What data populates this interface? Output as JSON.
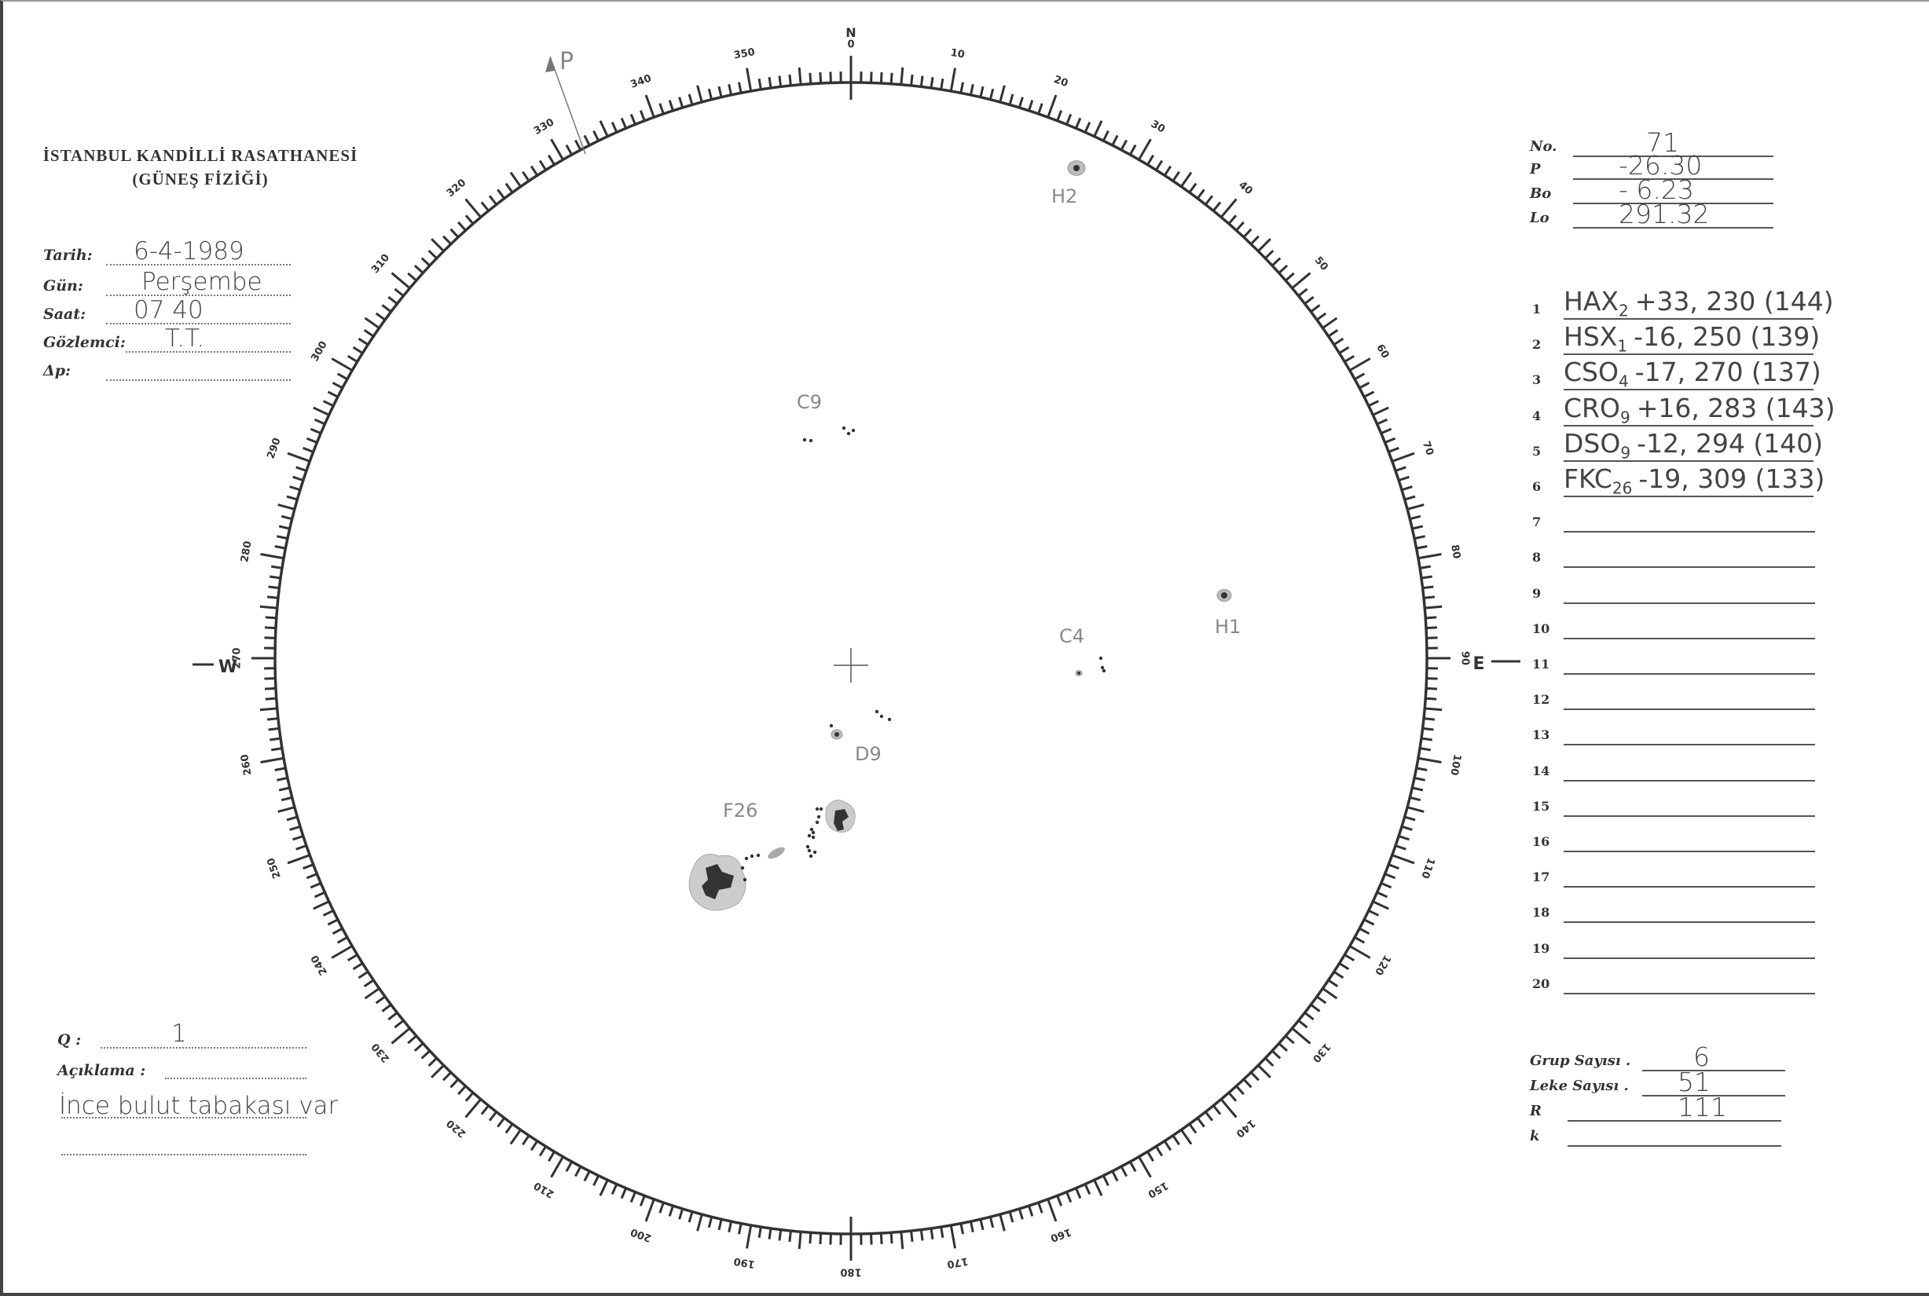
{
  "header": {
    "institution": "İSTANBUL KANDİLLİ RASATHANESİ",
    "department": "(GÜNEŞ FİZİĞİ)"
  },
  "observation": {
    "fields": [
      {
        "label": "Tarih:",
        "value": "6-4-1989"
      },
      {
        "label": "Gün:",
        "value": "Perşembe"
      },
      {
        "label": "Saat:",
        "value": "07 40"
      },
      {
        "label": "Gözlemci:",
        "value": "T.T."
      },
      {
        "label": "Δp:",
        "value": ""
      }
    ]
  },
  "parameters": [
    {
      "label": "No.",
      "value": "71"
    },
    {
      "label": "P",
      "value": "-26.30"
    },
    {
      "label": "Bo",
      "value": "- 6.23"
    },
    {
      "label": "Lo",
      "value": "291.32"
    }
  ],
  "groups": [
    {
      "n": "1",
      "cls": "HAX",
      "sub": "2",
      "rest": "+33, 230 (144)"
    },
    {
      "n": "2",
      "cls": "HSX",
      "sub": "1",
      "rest": "-16, 250 (139)"
    },
    {
      "n": "3",
      "cls": "CSO",
      "sub": "4",
      "rest": "-17, 270 (137)"
    },
    {
      "n": "4",
      "cls": "CRO",
      "sub": "9",
      "rest": "+16, 283 (143)"
    },
    {
      "n": "5",
      "cls": "DSO",
      "sub": "9",
      "rest": "-12, 294 (140)"
    },
    {
      "n": "6",
      "cls": "FKC",
      "sub": "26",
      "rest": "-19, 309 (133)"
    },
    {
      "n": "7"
    },
    {
      "n": "8"
    },
    {
      "n": "9"
    },
    {
      "n": "10"
    },
    {
      "n": "11"
    },
    {
      "n": "12"
    },
    {
      "n": "13"
    },
    {
      "n": "14"
    },
    {
      "n": "15"
    },
    {
      "n": "16"
    },
    {
      "n": "17"
    },
    {
      "n": "18"
    },
    {
      "n": "19"
    },
    {
      "n": "20"
    }
  ],
  "summary": [
    {
      "label": "Grup Sayısı .",
      "value": "6"
    },
    {
      "label": "Leke Sayısı .",
      "value": "51"
    },
    {
      "label": "R",
      "value": "111"
    },
    {
      "label": "k",
      "value": ""
    }
  ],
  "notes": {
    "q_label": "Q :",
    "q_value": "1",
    "comment_label": "Açıklama :",
    "comment": "İnce bulut tabakası var"
  },
  "disk": {
    "north_label": "N",
    "west_label": "W",
    "east_label": "E",
    "p_label": "P",
    "scale_labels": [
      "0",
      "10",
      "20",
      "30",
      "40",
      "50",
      "60",
      "70",
      "80",
      "90",
      "100",
      "110",
      "120",
      "130",
      "140",
      "150",
      "160",
      "170",
      "180",
      "190",
      "200",
      "210",
      "220",
      "230",
      "240",
      "250",
      "260",
      "270",
      "280",
      "290",
      "300",
      "310",
      "320",
      "330",
      "340",
      "350"
    ],
    "spot_groups": [
      {
        "label": "H2"
      },
      {
        "label": "C9"
      },
      {
        "label": "C4"
      },
      {
        "label": "H1"
      },
      {
        "label": "D9"
      },
      {
        "label": "F26"
      }
    ]
  }
}
